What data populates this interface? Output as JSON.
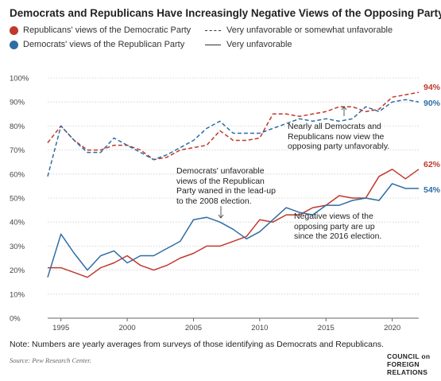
{
  "title": "Democrats and Republicans Have Increasingly Negative Views of the Opposing Party",
  "legend": {
    "rep": "Republicans' views of the Democratic Party",
    "dem": "Democrats' views of the Republican Party",
    "dashed": "Very unfavorable or somewhat unfavorable",
    "solid": "Very unfavorable"
  },
  "colors": {
    "rep": "#c0392b",
    "dem": "#2e6da4",
    "axis": "#999999",
    "grid": "#cccccc"
  },
  "annotations": {
    "a1": [
      "Nearly all Democrats and",
      "Republicans now view the",
      "opposing party unfavorably."
    ],
    "a2": [
      "Democrats' unfavorable",
      "views of the Republican",
      "Party waned in the lead-up",
      "to the 2008 election."
    ],
    "a3": [
      "Negative views of the",
      "opposing party are up",
      "since the 2016 election."
    ]
  },
  "note": "Note: Numbers are yearly averages from surveys of those identifying as Democrats and Republicans.",
  "source": "Source: Pew Research Center.",
  "logo": [
    "COUNCIL on",
    "FOREIGN",
    "RELATIONS"
  ],
  "chart_data": {
    "type": "line",
    "xlim": [
      1994,
      2022
    ],
    "ylim": [
      0,
      100
    ],
    "x_ticks": [
      "1995",
      "2000",
      "2005",
      "2010",
      "2015",
      "2020"
    ],
    "y_ticks": [
      "0%",
      "10%",
      "20%",
      "30%",
      "40%",
      "50%",
      "60%",
      "70%",
      "80%",
      "90%",
      "100%"
    ],
    "end_labels": {
      "rep_dashed": "94%",
      "dem_dashed": "90%",
      "rep_solid": "62%",
      "dem_solid": "54%"
    },
    "series": [
      {
        "name": "Republicans' views of the Democratic Party",
        "style": "dashed",
        "color": "#c0392b",
        "points": [
          [
            1994,
            73
          ],
          [
            1995,
            80
          ],
          [
            1996,
            74
          ],
          [
            1997,
            70
          ],
          [
            1998,
            70
          ],
          [
            1999,
            72
          ],
          [
            2000,
            72
          ],
          [
            2001,
            70
          ],
          [
            2002,
            66
          ],
          [
            2003,
            67
          ],
          [
            2004,
            70
          ],
          [
            2005,
            71
          ],
          [
            2006,
            72
          ],
          [
            2007,
            78
          ],
          [
            2008,
            74
          ],
          [
            2009,
            74
          ],
          [
            2010,
            75
          ],
          [
            2011,
            85
          ],
          [
            2012,
            85
          ],
          [
            2013,
            84
          ],
          [
            2014,
            85
          ],
          [
            2015,
            86
          ],
          [
            2016,
            88
          ],
          [
            2017,
            88
          ],
          [
            2018,
            86
          ],
          [
            2019,
            87
          ],
          [
            2020,
            92
          ],
          [
            2021,
            93
          ],
          [
            2022,
            94
          ]
        ]
      },
      {
        "name": "Democrats' views of the Republican Party",
        "style": "dashed",
        "color": "#2e6da4",
        "points": [
          [
            1994,
            59
          ],
          [
            1995,
            80
          ],
          [
            1996,
            74
          ],
          [
            1997,
            69
          ],
          [
            1998,
            69
          ],
          [
            1999,
            75
          ],
          [
            2000,
            72
          ],
          [
            2001,
            69
          ],
          [
            2002,
            66
          ],
          [
            2003,
            68
          ],
          [
            2004,
            71
          ],
          [
            2005,
            74
          ],
          [
            2006,
            79
          ],
          [
            2007,
            82
          ],
          [
            2008,
            77
          ],
          [
            2009,
            77
          ],
          [
            2010,
            77
          ],
          [
            2011,
            79
          ],
          [
            2012,
            81
          ],
          [
            2013,
            83
          ],
          [
            2014,
            82
          ],
          [
            2015,
            83
          ],
          [
            2016,
            82
          ],
          [
            2017,
            83
          ],
          [
            2018,
            88
          ],
          [
            2019,
            86
          ],
          [
            2020,
            90
          ],
          [
            2021,
            91
          ],
          [
            2022,
            90
          ]
        ]
      },
      {
        "name": "Republicans' views of the Democratic Party",
        "style": "solid",
        "color": "#c0392b",
        "points": [
          [
            1994,
            21
          ],
          [
            1995,
            21
          ],
          [
            1996,
            19
          ],
          [
            1997,
            17
          ],
          [
            1998,
            21
          ],
          [
            1999,
            23
          ],
          [
            2000,
            26
          ],
          [
            2001,
            22
          ],
          [
            2002,
            20
          ],
          [
            2003,
            22
          ],
          [
            2004,
            25
          ],
          [
            2005,
            27
          ],
          [
            2006,
            30
          ],
          [
            2007,
            30
          ],
          [
            2008,
            32
          ],
          [
            2009,
            34
          ],
          [
            2010,
            41
          ],
          [
            2011,
            40
          ],
          [
            2012,
            43
          ],
          [
            2013,
            43
          ],
          [
            2014,
            46
          ],
          [
            2015,
            47
          ],
          [
            2016,
            51
          ],
          [
            2017,
            50
          ],
          [
            2018,
            50
          ],
          [
            2019,
            59
          ],
          [
            2020,
            62
          ],
          [
            2021,
            58
          ],
          [
            2022,
            62
          ]
        ]
      },
      {
        "name": "Democrats' views of the Republican Party",
        "style": "solid",
        "color": "#2e6da4",
        "points": [
          [
            1994,
            17
          ],
          [
            1995,
            35
          ],
          [
            1996,
            27
          ],
          [
            1997,
            20
          ],
          [
            1998,
            26
          ],
          [
            1999,
            28
          ],
          [
            2000,
            23
          ],
          [
            2001,
            26
          ],
          [
            2002,
            26
          ],
          [
            2003,
            29
          ],
          [
            2004,
            32
          ],
          [
            2005,
            41
          ],
          [
            2006,
            42
          ],
          [
            2007,
            40
          ],
          [
            2008,
            37
          ],
          [
            2009,
            33
          ],
          [
            2010,
            36
          ],
          [
            2011,
            41
          ],
          [
            2012,
            46
          ],
          [
            2013,
            44
          ],
          [
            2014,
            43
          ],
          [
            2015,
            47
          ],
          [
            2016,
            47
          ],
          [
            2017,
            49
          ],
          [
            2018,
            50
          ],
          [
            2019,
            49
          ],
          [
            2020,
            56
          ],
          [
            2021,
            54
          ],
          [
            2022,
            54
          ]
        ]
      }
    ]
  }
}
